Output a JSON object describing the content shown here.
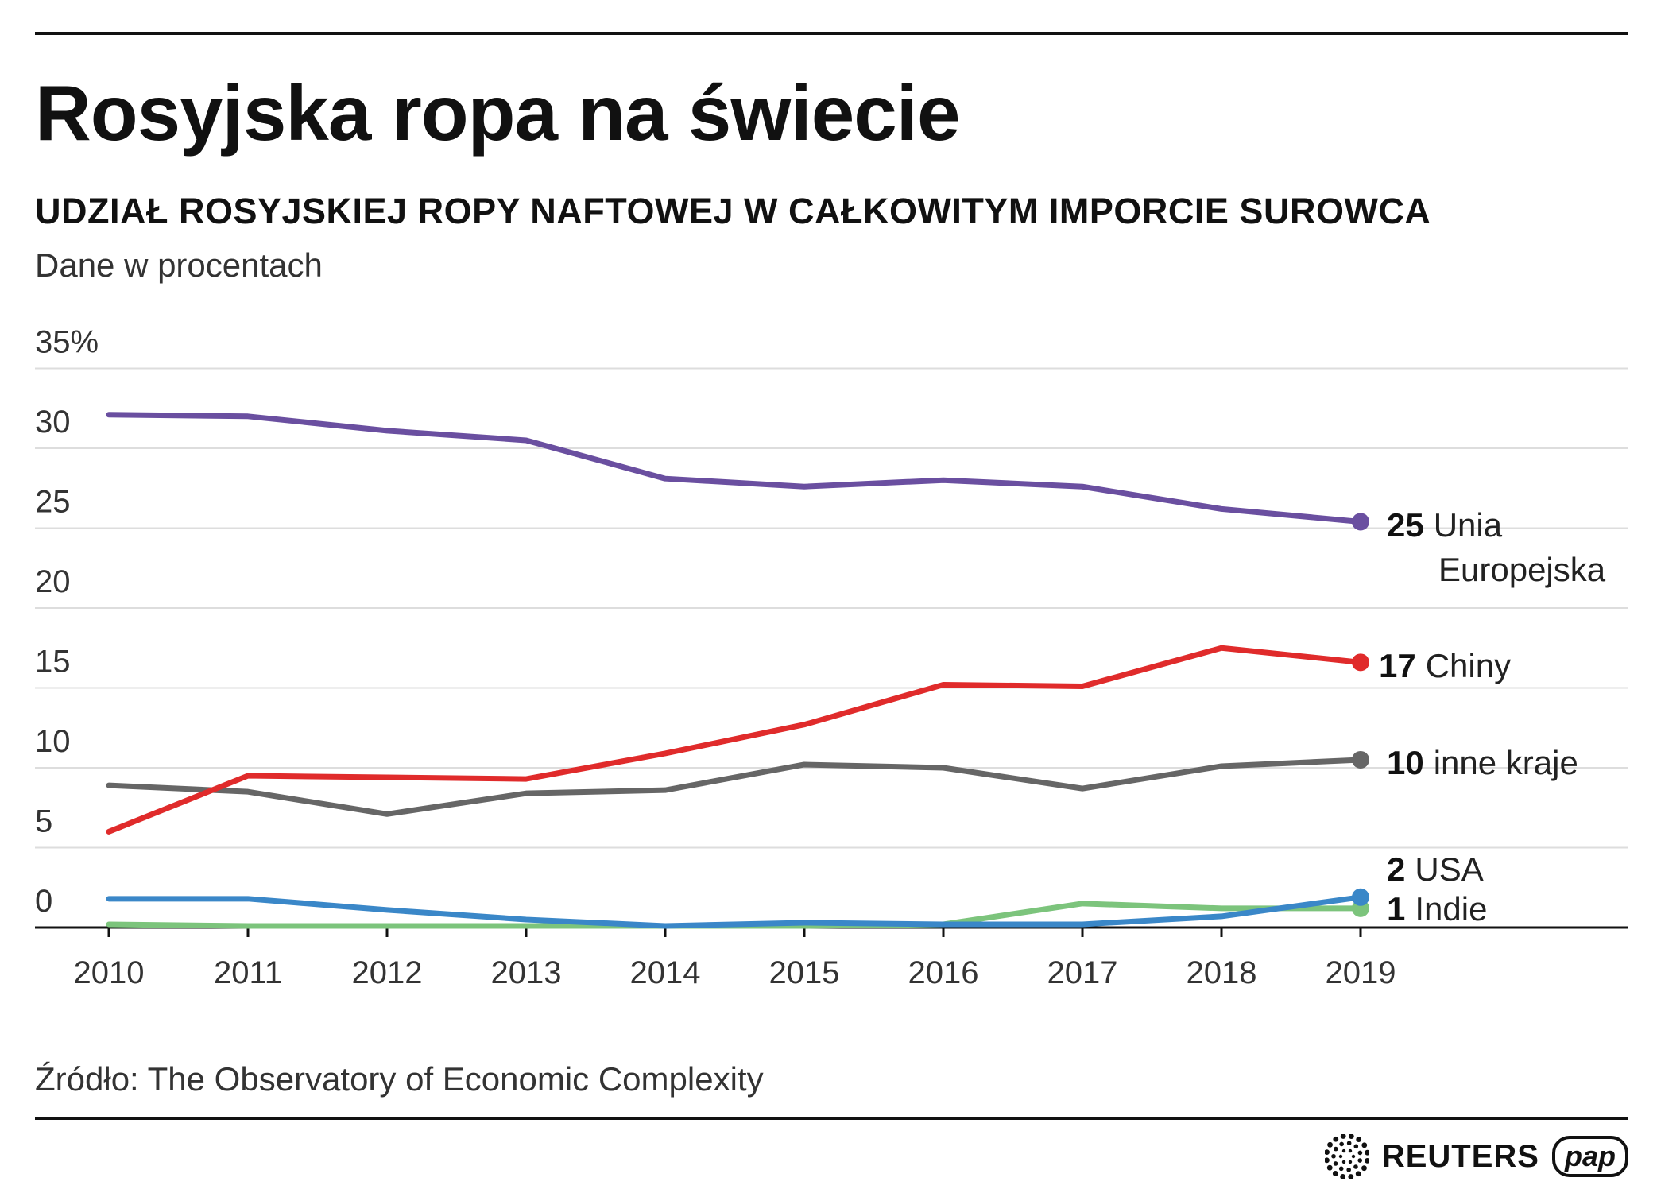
{
  "title": "Rosyjska ropa na świecie",
  "subtitle": "UDZIAŁ ROSYJSKIEJ ROPY NAFTOWEJ W CAŁKOWITYM IMPORCIE SUROWCA",
  "unit_note": "Dane w procentach",
  "source": "Źródło: The Observatory of Economic Complexity",
  "logos": {
    "reuters": "REUTERS",
    "pap": "pap"
  },
  "chart_data": {
    "type": "line",
    "title": "UDZIAŁ ROSYJSKIEJ ROPY NAFTOWEJ W CAŁKOWITYM IMPORCIE SUROWCA",
    "xlabel": "",
    "ylabel": "Dane w procentach",
    "ylim": [
      0,
      35
    ],
    "x": [
      "2010",
      "2011",
      "2012",
      "2013",
      "2014",
      "2015",
      "2016",
      "2017",
      "2018",
      "2019"
    ],
    "y_ticks": [
      {
        "value": 35,
        "label": "35%"
      },
      {
        "value": 30,
        "label": "30"
      },
      {
        "value": 25,
        "label": "25"
      },
      {
        "value": 20,
        "label": "20"
      },
      {
        "value": 15,
        "label": "15"
      },
      {
        "value": 10,
        "label": "10"
      },
      {
        "value": 5,
        "label": "5"
      },
      {
        "value": 0,
        "label": "0"
      }
    ],
    "series": [
      {
        "name": "Unia Europejska",
        "label_value": "25",
        "label_lines": [
          "Unia",
          "Europejska"
        ],
        "color": "#6a4fa0",
        "values": [
          32.1,
          32.0,
          31.1,
          30.5,
          28.1,
          27.6,
          28.0,
          27.6,
          26.2,
          25.4
        ]
      },
      {
        "name": "Chiny",
        "label_value": "17",
        "label_lines": [
          "Chiny"
        ],
        "color": "#e02b2b",
        "values": [
          6.0,
          9.5,
          9.4,
          9.3,
          10.9,
          12.7,
          15.2,
          15.1,
          17.5,
          16.6
        ]
      },
      {
        "name": "inne kraje",
        "label_value": "10",
        "label_lines": [
          "inne kraje"
        ],
        "color": "#666666",
        "values": [
          8.9,
          8.5,
          7.1,
          8.4,
          8.6,
          10.2,
          10.0,
          8.7,
          10.1,
          10.5
        ]
      },
      {
        "name": "USA",
        "label_value": "2",
        "label_lines": [
          "USA"
        ],
        "color": "#3a87c8",
        "values": [
          1.8,
          1.8,
          1.1,
          0.5,
          0.1,
          0.3,
          0.2,
          0.2,
          0.7,
          1.9
        ]
      },
      {
        "name": "Indie",
        "label_value": "1",
        "label_lines": [
          "Indie"
        ],
        "color": "#7cc47c",
        "values": [
          0.2,
          0.1,
          0.1,
          0.1,
          0.1,
          0.1,
          0.2,
          1.5,
          1.2,
          1.2
        ]
      }
    ]
  }
}
